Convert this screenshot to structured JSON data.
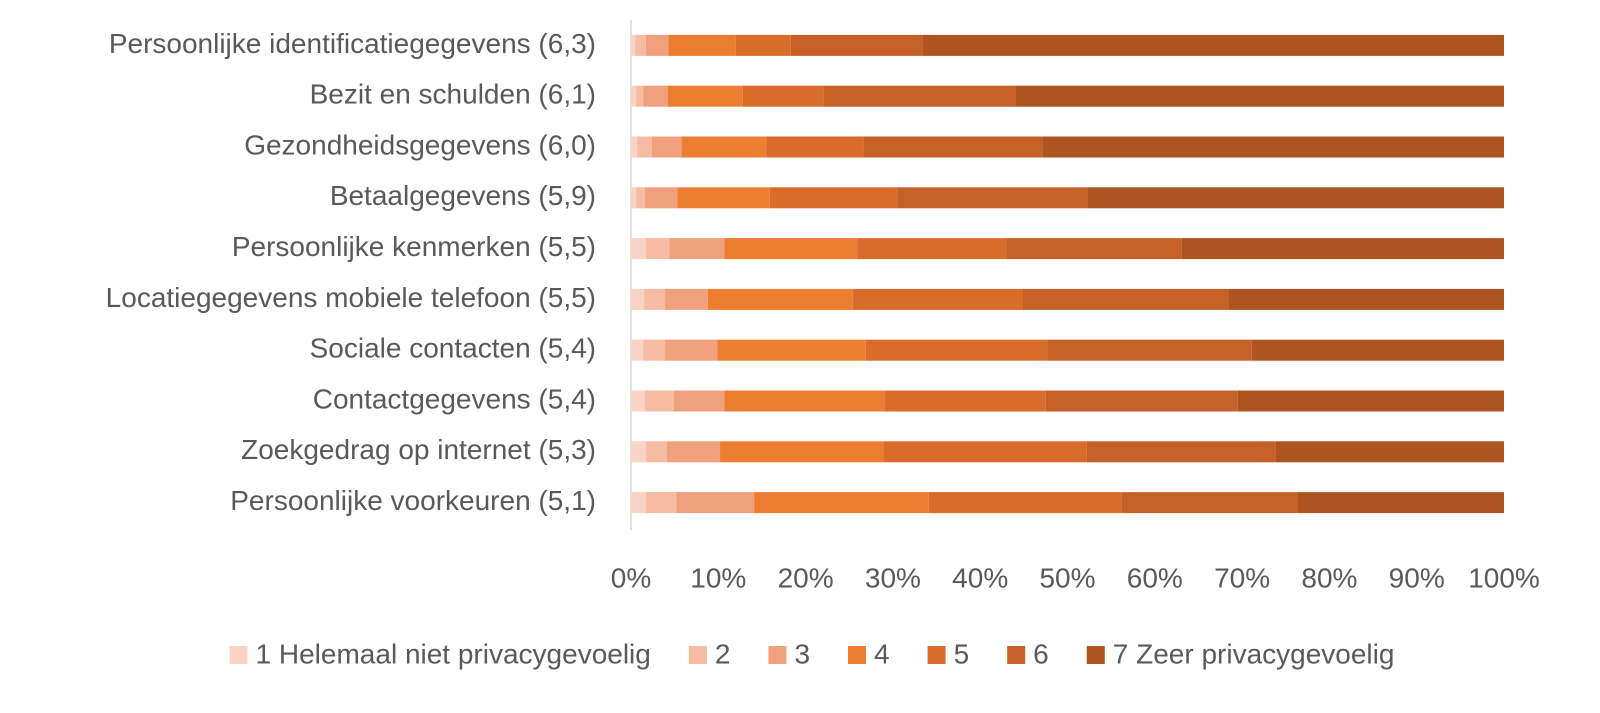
{
  "chart_data": {
    "type": "stacked-barh",
    "categories": [
      "Persoonlijke identificatiegegevens (6,3)",
      "Bezit en schulden (6,1)",
      "Gezondheidsgegevens (6,0)",
      "Betaalgegevens (5,9)",
      "Persoonlijke kenmerken (5,5)",
      "Locatiegegevens mobiele telefoon (5,5)",
      "Sociale contacten (5,4)",
      "Contactgegevens (5,4)",
      "Zoekgedrag op internet (5,3)",
      "Persoonlijke voorkeuren (5,1)"
    ],
    "series": [
      {
        "name": "1 Helemaal niet privacygevoelig",
        "color": "#f9d3c3",
        "values": [
          0.5,
          0.6,
          0.7,
          0.6,
          1.7,
          1.5,
          1.4,
          1.6,
          1.7,
          1.7
        ]
      },
      {
        "name": "2",
        "color": "#f5bba3",
        "values": [
          1.2,
          0.8,
          1.7,
          1.0,
          2.7,
          2.4,
          2.5,
          3.3,
          2.4,
          3.5
        ]
      },
      {
        "name": "3",
        "color": "#f0a07c",
        "values": [
          2.6,
          2.8,
          3.4,
          3.7,
          6.3,
          4.9,
          6.0,
          5.8,
          6.1,
          8.9
        ]
      },
      {
        "name": "4",
        "color": "#ed7d31",
        "values": [
          7.7,
          8.6,
          9.7,
          10.6,
          15.2,
          16.6,
          17.0,
          18.4,
          18.7,
          20.0
        ]
      },
      {
        "name": "5",
        "color": "#d96b2b",
        "values": [
          6.3,
          9.3,
          11.1,
          14.6,
          17.1,
          19.5,
          20.8,
          18.4,
          23.3,
          22.1
        ]
      },
      {
        "name": "6",
        "color": "#c56026",
        "values": [
          15.1,
          22.0,
          20.5,
          21.8,
          20.1,
          23.6,
          23.4,
          22.0,
          21.6,
          20.2
        ]
      },
      {
        "name": "7 Zeer privacygevoelig",
        "color": "#ad5420",
        "values": [
          66.6,
          55.9,
          52.9,
          47.7,
          36.9,
          31.5,
          28.9,
          30.5,
          26.2,
          23.6
        ]
      }
    ],
    "xlim": [
      0,
      100
    ],
    "xticks": [
      {
        "value": 0,
        "label": "0%"
      },
      {
        "value": 10,
        "label": "10%"
      },
      {
        "value": 20,
        "label": "20%"
      },
      {
        "value": 30,
        "label": "30%"
      },
      {
        "value": 40,
        "label": "40%"
      },
      {
        "value": 50,
        "label": "50%"
      },
      {
        "value": 60,
        "label": "60%"
      },
      {
        "value": 70,
        "label": "70%"
      },
      {
        "value": 80,
        "label": "80%"
      },
      {
        "value": 90,
        "label": "90%"
      },
      {
        "value": 100,
        "label": "100%"
      }
    ],
    "grid": false,
    "legend": "bottom"
  }
}
